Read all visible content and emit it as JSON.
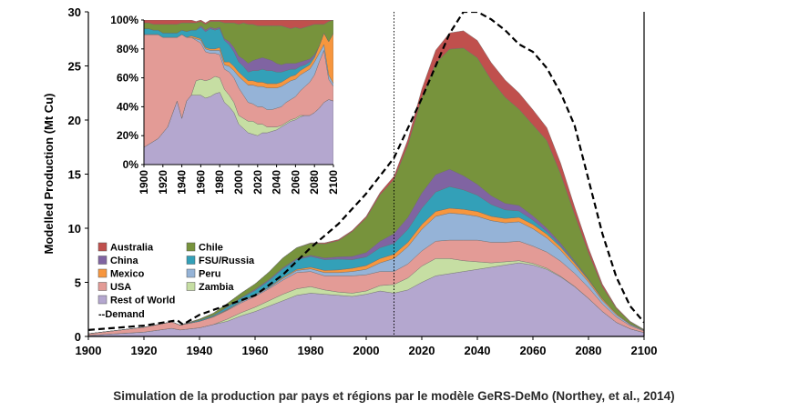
{
  "caption": "Simulation de la production par pays et régions par le modèle GeRS-DeMo (Northey, et al., 2014)",
  "chart_data": [
    {
      "type": "area",
      "stacked": true,
      "ylabel": "Modelled Production (Mt Cu)",
      "xlabel": "",
      "xlim": [
        1900,
        2100
      ],
      "ylim": [
        0,
        30
      ],
      "x_ticks": [
        "1900",
        "1920",
        "1940",
        "1960",
        "1980",
        "2000",
        "2020",
        "2040",
        "2060",
        "2080",
        "2100"
      ],
      "y_ticks": [
        "0",
        "5",
        "10",
        "15",
        "20",
        "25",
        "30"
      ],
      "vertical_marker_x": 2010,
      "x": [
        1900,
        1910,
        1920,
        1930,
        1933,
        1940,
        1945,
        1950,
        1955,
        1960,
        1965,
        1970,
        1975,
        1980,
        1985,
        1990,
        1995,
        2000,
        2005,
        2010,
        2015,
        2020,
        2025,
        2030,
        2035,
        2040,
        2045,
        2050,
        2055,
        2060,
        2065,
        2070,
        2075,
        2080,
        2085,
        2090,
        2095,
        2100
      ],
      "series": [
        {
          "name": "Rest of World",
          "color": "#b4a7cf",
          "values": [
            0.1,
            0.25,
            0.4,
            0.75,
            0.6,
            0.8,
            1.1,
            1.4,
            1.9,
            2.3,
            2.8,
            3.3,
            3.8,
            4.0,
            3.9,
            3.8,
            3.7,
            3.9,
            4.2,
            4.0,
            4.3,
            5.0,
            5.6,
            5.8,
            6.0,
            6.2,
            6.4,
            6.6,
            6.8,
            6.6,
            6.2,
            5.5,
            4.6,
            3.5,
            2.3,
            1.3,
            0.7,
            0.35
          ]
        },
        {
          "name": "Zambia",
          "color": "#c6dea3",
          "values": [
            0,
            0,
            0,
            0,
            0,
            0,
            0,
            0.2,
            0.3,
            0.4,
            0.5,
            0.6,
            0.6,
            0.6,
            0.4,
            0.3,
            0.3,
            0.3,
            0.5,
            0.8,
            1.1,
            1.5,
            1.6,
            1.4,
            1.0,
            0.7,
            0.4,
            0.3,
            0.2,
            0.15,
            0.1,
            0.05,
            0.03,
            0.02,
            0.01,
            0,
            0,
            0
          ]
        },
        {
          "name": "USA",
          "color": "#e39b96",
          "values": [
            0.15,
            0.3,
            0.45,
            0.6,
            0.45,
            0.6,
            0.7,
            0.8,
            0.9,
            1.0,
            1.1,
            1.3,
            1.5,
            1.4,
            1.3,
            1.5,
            1.6,
            1.5,
            1.3,
            1.2,
            1.3,
            1.4,
            1.6,
            1.7,
            1.9,
            2.0,
            1.9,
            1.8,
            1.8,
            1.6,
            1.5,
            1.4,
            1.2,
            1.0,
            0.7,
            0.5,
            0.3,
            0.15
          ]
        },
        {
          "name": "Peru",
          "color": "#95b3d7",
          "values": [
            0,
            0,
            0,
            0,
            0,
            0,
            0,
            0.05,
            0.1,
            0.1,
            0.1,
            0.15,
            0.2,
            0.25,
            0.3,
            0.3,
            0.4,
            0.5,
            0.8,
            1.2,
            1.6,
            2.0,
            2.3,
            2.5,
            2.4,
            2.2,
            2.0,
            1.8,
            1.8,
            1.6,
            1.3,
            1.0,
            0.7,
            0.5,
            0.3,
            0.2,
            0.1,
            0.05
          ]
        },
        {
          "name": "Mexico",
          "color": "#f7963e",
          "values": [
            0,
            0,
            0,
            0,
            0,
            0,
            0.05,
            0.05,
            0.05,
            0.05,
            0.05,
            0.1,
            0.1,
            0.15,
            0.2,
            0.25,
            0.3,
            0.35,
            0.4,
            0.4,
            0.4,
            0.45,
            0.45,
            0.45,
            0.45,
            0.45,
            0.4,
            0.4,
            0.4,
            0.4,
            0.35,
            0.3,
            0.25,
            0.2,
            0.15,
            0.1,
            0.05,
            0.02
          ]
        },
        {
          "name": "FSU/Russia",
          "color": "#33a0b8",
          "values": [
            0,
            0,
            0,
            0,
            0,
            0.1,
            0.1,
            0.2,
            0.3,
            0.4,
            0.6,
            0.8,
            0.9,
            1.0,
            1.0,
            1.0,
            0.8,
            0.8,
            1.0,
            1.0,
            1.2,
            1.5,
            1.8,
            2.0,
            1.8,
            1.5,
            1.1,
            0.8,
            0.6,
            0.4,
            0.25,
            0.15,
            0.1,
            0.05,
            0.02,
            0,
            0,
            0
          ]
        },
        {
          "name": "China",
          "color": "#8064a2",
          "values": [
            0,
            0,
            0,
            0,
            0,
            0,
            0,
            0.05,
            0.05,
            0.1,
            0.1,
            0.1,
            0.1,
            0.1,
            0.15,
            0.2,
            0.3,
            0.4,
            0.6,
            0.9,
            1.1,
            1.4,
            1.6,
            1.6,
            1.3,
            1.0,
            0.8,
            0.6,
            0.5,
            0.4,
            0.3,
            0.2,
            0.1,
            0.05,
            0,
            0,
            0,
            0
          ]
        },
        {
          "name": "Chile",
          "color": "#77933c",
          "values": [
            0,
            0,
            0,
            0,
            0,
            0.1,
            0.2,
            0.3,
            0.4,
            0.5,
            0.7,
            0.9,
            1.0,
            1.1,
            1.3,
            1.5,
            2.3,
            3.2,
            4.3,
            5.0,
            6.7,
            8.8,
            10.3,
            11.1,
            11.8,
            11.7,
            10.7,
            9.8,
            8.9,
            8.4,
            8.1,
            6.4,
            4.3,
            2.4,
            1.1,
            0.5,
            0.2,
            0.05
          ]
        },
        {
          "name": "Australia",
          "color": "#c0504d",
          "values": [
            0,
            0,
            0,
            0,
            0,
            0,
            0,
            0,
            0,
            0,
            0,
            0,
            0,
            0.05,
            0.1,
            0.1,
            0.1,
            0.15,
            0.2,
            0.3,
            0.5,
            0.8,
            1.2,
            1.5,
            1.6,
            1.6,
            1.6,
            1.6,
            1.5,
            1.4,
            1.2,
            1.0,
            0.7,
            0.45,
            0.25,
            0.1,
            0.05,
            0.02
          ]
        }
      ],
      "demand": {
        "name": "Demand",
        "x": [
          1900,
          1920,
          1932,
          1934,
          1940,
          1950,
          1960,
          1970,
          1980,
          1990,
          2000,
          2010,
          2020,
          2030,
          2035,
          2040,
          2045,
          2050,
          2055,
          2060,
          2065,
          2070,
          2075,
          2080,
          2085,
          2090,
          2095,
          2100
        ],
        "values": [
          0.6,
          1.0,
          1.5,
          1.1,
          2.0,
          2.9,
          3.8,
          5.7,
          8.2,
          10.4,
          13.2,
          16.5,
          22.0,
          28.0,
          30.0,
          30.0,
          29.3,
          28.3,
          27.0,
          26.3,
          24.8,
          22.5,
          19.5,
          14.5,
          9.5,
          5.5,
          2.8,
          1.3
        ]
      }
    },
    {
      "type": "area",
      "stacked": true,
      "normalized": true,
      "xlim": [
        1900,
        2100
      ],
      "ylim": [
        0,
        100
      ],
      "x_ticks": [
        "1900",
        "1920",
        "1940",
        "1960",
        "1980",
        "2000",
        "2020",
        "2040",
        "2060",
        "2080",
        "2100"
      ],
      "y_ticks": [
        "0%",
        "20%",
        "40%",
        "60%",
        "80%",
        "100%"
      ],
      "x": [
        1900,
        1905,
        1910,
        1915,
        1920,
        1925,
        1930,
        1935,
        1940,
        1945,
        1950,
        1955,
        1960,
        1965,
        1970,
        1975,
        1980,
        1985,
        1990,
        1995,
        2000,
        2005,
        2010,
        2015,
        2020,
        2025,
        2030,
        2035,
        2040,
        2045,
        2050,
        2055,
        2060,
        2065,
        2070,
        2075,
        2080,
        2085,
        2090,
        2095,
        2100
      ],
      "series": [
        {
          "name": "Rest of World",
          "color": "#b4a7cf",
          "values": [
            12,
            14,
            16,
            18,
            22,
            26,
            35,
            44,
            32,
            44,
            48,
            48,
            48,
            46,
            47,
            49,
            50,
            43,
            40,
            36,
            28,
            25,
            22,
            21,
            20,
            22,
            22,
            23,
            24,
            26,
            28,
            30,
            31,
            33,
            34,
            34,
            36,
            39,
            43,
            45,
            44
          ]
        },
        {
          "name": "Zambia",
          "color": "#c6dea3",
          "values": [
            0,
            0,
            0,
            0,
            0,
            0,
            0,
            0,
            0,
            0,
            0,
            10,
            11,
            12,
            12,
            12,
            10,
            9,
            8,
            7,
            6,
            7,
            8,
            9,
            8,
            6,
            4,
            3,
            2,
            1,
            1,
            1,
            1,
            1,
            0,
            0,
            0,
            0,
            0,
            0,
            0
          ]
        },
        {
          "name": "USA",
          "color": "#e39b96",
          "values": [
            78,
            76,
            74,
            72,
            66,
            62,
            53,
            44,
            58,
            44,
            40,
            28,
            25,
            20,
            18,
            16,
            16,
            14,
            16,
            17,
            19,
            16,
            13,
            12,
            12,
            12,
            12,
            12,
            13,
            13,
            14,
            14,
            15,
            17,
            20,
            23,
            26,
            32,
            36,
            14,
            10
          ]
        },
        {
          "name": "Peru",
          "color": "#95b3d7",
          "values": [
            0,
            0,
            0,
            0,
            0,
            0,
            0,
            0,
            0,
            0,
            0,
            1,
            2,
            2,
            2,
            2,
            3,
            3,
            4,
            5,
            8,
            10,
            12,
            13,
            14,
            14,
            15,
            15,
            14,
            14,
            13,
            13,
            12,
            11,
            10,
            9,
            9,
            6,
            4,
            3,
            2
          ]
        },
        {
          "name": "Mexico",
          "color": "#f7963e",
          "values": [
            0,
            0,
            0,
            0,
            0,
            0,
            0,
            0,
            0,
            0,
            1,
            1,
            1,
            1,
            1,
            1,
            2,
            2,
            3,
            3,
            3,
            3,
            3,
            3,
            3,
            3,
            3,
            3,
            3,
            3,
            3,
            3,
            3,
            3,
            3,
            3,
            3,
            5,
            8,
            23,
            35
          ]
        },
        {
          "name": "FSU/Russia",
          "color": "#33a0b8",
          "values": [
            4,
            4,
            3,
            3,
            3,
            3,
            3,
            3,
            3,
            4,
            4,
            5,
            8,
            11,
            14,
            13,
            13,
            15,
            12,
            10,
            7,
            7,
            6,
            7,
            8,
            9,
            9,
            9,
            8,
            7,
            6,
            5,
            4,
            3,
            2,
            2,
            1,
            0,
            0,
            0,
            0
          ]
        },
        {
          "name": "China",
          "color": "#8064a2",
          "values": [
            0,
            0,
            0,
            0,
            0,
            0,
            0,
            0,
            0,
            0,
            0,
            0,
            1,
            1,
            1,
            1,
            1,
            1,
            2,
            3,
            4,
            5,
            6,
            7,
            8,
            8,
            8,
            7,
            6,
            5,
            5,
            4,
            4,
            3,
            3,
            2,
            1,
            0,
            0,
            0,
            0
          ]
        },
        {
          "name": "Chile",
          "color": "#77933c",
          "values": [
            4,
            4,
            4,
            4,
            6,
            6,
            6,
            6,
            5,
            6,
            5,
            5,
            3,
            4,
            4,
            5,
            4,
            11,
            13,
            17,
            22,
            25,
            27,
            25,
            23,
            22,
            23,
            24,
            26,
            27,
            25,
            24,
            25,
            23,
            23,
            23,
            21,
            15,
            6,
            14,
            9
          ]
        },
        {
          "name": "Australia",
          "color": "#c0504d",
          "values": [
            2,
            2,
            3,
            3,
            3,
            3,
            3,
            3,
            2,
            2,
            2,
            1,
            1,
            1,
            1,
            1,
            1,
            2,
            2,
            2,
            3,
            2,
            3,
            3,
            4,
            4,
            4,
            4,
            4,
            4,
            5,
            6,
            5,
            6,
            5,
            4,
            3,
            3,
            3,
            1,
            0
          ]
        }
      ]
    }
  ]
}
